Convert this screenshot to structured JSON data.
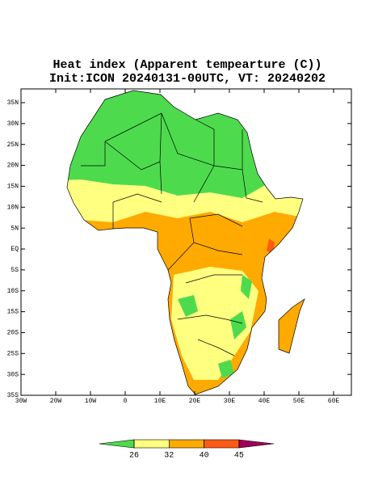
{
  "title": "Heat index (Apparent tempearture (C))",
  "subtitle": "Init:ICON 20240131-00UTC, VT: 20240202",
  "lat_ticks": [
    "35N",
    "30N",
    "25N",
    "20N",
    "15N",
    "10N",
    "5N",
    "EQ",
    "5S",
    "10S",
    "15S",
    "20S",
    "25S",
    "30S",
    "35S"
  ],
  "lon_ticks": [
    "30W",
    "20W",
    "10W",
    "0",
    "10E",
    "20E",
    "30E",
    "40E",
    "50E",
    "60E"
  ],
  "colorbar": {
    "levels": [
      26,
      32,
      40,
      45
    ],
    "colors": [
      "#4ddb4d",
      "#ffff80",
      "#ffaa00",
      "#ff5a14",
      "#a0005a"
    ]
  }
}
